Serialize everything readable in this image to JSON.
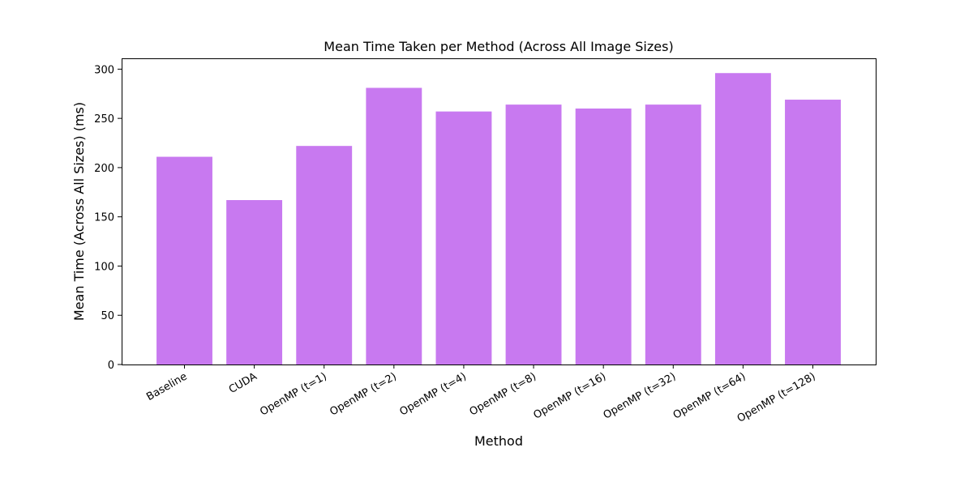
{
  "chart_data": {
    "type": "bar",
    "title": "Mean Time Taken per Method (Across All Image Sizes)",
    "xlabel": "Method",
    "ylabel": "Mean Time (Across All Sizes) (ms)",
    "categories": [
      "Baseline",
      "CUDA",
      "OpenMP (t=1)",
      "OpenMP (t=2)",
      "OpenMP (t=4)",
      "OpenMP (t=8)",
      "OpenMP (t=16)",
      "OpenMP (t=32)",
      "OpenMP (t=64)",
      "OpenMP (t=128)"
    ],
    "values": [
      211,
      167,
      222,
      281,
      257,
      264,
      260,
      264,
      296,
      269
    ],
    "ylim": [
      0,
      311
    ],
    "yticks": [
      0,
      50,
      100,
      150,
      200,
      250,
      300
    ],
    "grid": false,
    "bar_color": "#c879f0",
    "x_tick_rotation": "30 degrees"
  }
}
